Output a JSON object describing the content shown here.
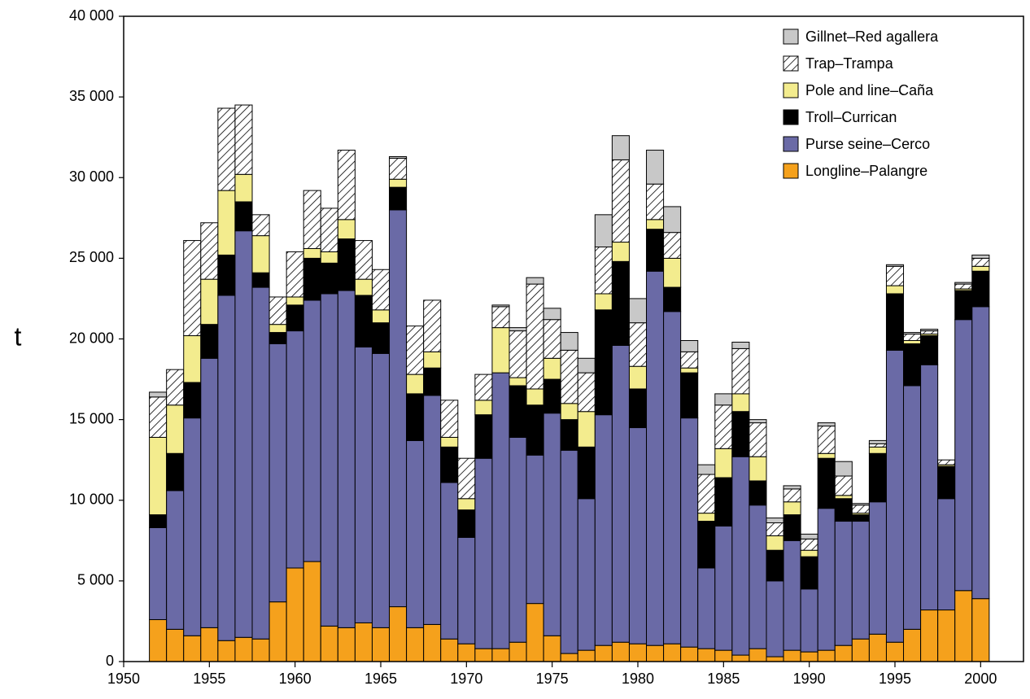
{
  "chart_data": {
    "type": "stacked-bar",
    "y_label": "t",
    "x": [
      1952,
      1953,
      1954,
      1955,
      1956,
      1957,
      1958,
      1959,
      1960,
      1961,
      1962,
      1963,
      1964,
      1965,
      1966,
      1967,
      1968,
      1969,
      1970,
      1971,
      1972,
      1973,
      1974,
      1975,
      1976,
      1977,
      1978,
      1979,
      1980,
      1981,
      1982,
      1983,
      1984,
      1985,
      1986,
      1987,
      1988,
      1989,
      1990,
      1991,
      1992,
      1993,
      1994,
      1995,
      1996,
      1997,
      1998,
      1999,
      2000
    ],
    "xlim": [
      1950,
      2002.5
    ],
    "xticks": [
      1950,
      1955,
      1960,
      1965,
      1970,
      1975,
      1980,
      1985,
      1990,
      1995,
      2000
    ],
    "ylim": [
      0,
      40000
    ],
    "yticks": [
      0,
      {
        "value": 5000,
        "label": "5 000"
      },
      {
        "value": 10000,
        "label": "10 000"
      },
      {
        "value": 15000,
        "label": "15 000"
      },
      {
        "value": 20000,
        "label": "20 000"
      },
      {
        "value": 25000,
        "label": "25 000"
      },
      {
        "value": 30000,
        "label": "30 000"
      },
      {
        "value": 35000,
        "label": "35 000"
      },
      {
        "value": 40000,
        "label": "40 000"
      }
    ],
    "grid": false,
    "legend": "top-right",
    "series": [
      {
        "name": "Longline–Palangre",
        "color": "#f5a11c",
        "values": [
          2600,
          2000,
          1600,
          2100,
          1300,
          1500,
          1400,
          3700,
          5800,
          6200,
          2200,
          2100,
          2400,
          2100,
          3400,
          2100,
          2300,
          1400,
          1100,
          800,
          800,
          1200,
          3600,
          1600,
          500,
          700,
          1000,
          1200,
          1100,
          1000,
          1100,
          900,
          800,
          700,
          400,
          800,
          300,
          700,
          600,
          700,
          1000,
          1400,
          1700,
          1200,
          2000,
          3200,
          3200,
          4400,
          3900
        ]
      },
      {
        "name": "Purse seine–Cerco",
        "color": "#6a6aa6",
        "values": [
          5700,
          8600,
          13500,
          16700,
          21400,
          25200,
          21800,
          16000,
          14700,
          16200,
          20600,
          20900,
          17100,
          17000,
          24600,
          11600,
          14200,
          9700,
          6600,
          11800,
          17100,
          12700,
          9200,
          13800,
          12600,
          9400,
          14300,
          18400,
          13400,
          23200,
          20600,
          14200,
          5000,
          7700,
          12300,
          8900,
          4700,
          6800,
          3900,
          8800,
          7700,
          7300,
          8200,
          18100,
          15100,
          15200,
          6900,
          16800,
          18100
        ]
      },
      {
        "name": "Troll–Currican",
        "color": "#000000",
        "values": [
          800,
          2300,
          2200,
          2100,
          2500,
          1800,
          900,
          700,
          1600,
          2600,
          1900,
          3200,
          3200,
          1900,
          1400,
          2900,
          1700,
          2200,
          1700,
          2700,
          0,
          3200,
          3100,
          2100,
          1900,
          3200,
          6500,
          5200,
          2400,
          2600,
          1500,
          2800,
          2900,
          3000,
          2800,
          1500,
          1900,
          1600,
          2000,
          3100,
          1400,
          400,
          3000,
          3500,
          2600,
          1800,
          2000,
          1800,
          2200
        ]
      },
      {
        "name": "Pole and line–Caña",
        "color": "#f3ec8e",
        "values": [
          4800,
          3000,
          2900,
          2800,
          4000,
          1700,
          2300,
          500,
          500,
          600,
          700,
          1200,
          1000,
          800,
          500,
          1200,
          1000,
          600,
          700,
          900,
          2800,
          500,
          1000,
          1300,
          1000,
          2200,
          1000,
          1200,
          1400,
          600,
          1800,
          300,
          500,
          1800,
          1100,
          1500,
          900,
          800,
          400,
          300,
          200,
          100,
          400,
          500,
          200,
          100,
          100,
          100,
          300
        ]
      },
      {
        "name": "Trap–Trampa",
        "pattern": "hatch",
        "values": [
          2500,
          2200,
          5900,
          3500,
          5100,
          4300,
          1300,
          1700,
          2800,
          3600,
          2700,
          4300,
          2400,
          2500,
          1300,
          3000,
          3200,
          2300,
          2500,
          1600,
          1300,
          2900,
          6500,
          2400,
          3300,
          2400,
          2900,
          5100,
          2700,
          2200,
          1600,
          1000,
          2400,
          2700,
          2800,
          2100,
          800,
          800,
          700,
          1700,
          1200,
          500,
          200,
          1200,
          400,
          200,
          300,
          300,
          500
        ]
      },
      {
        "name": "Gillnet–Red agallera",
        "color": "#c8c8c8",
        "values": [
          300,
          0,
          0,
          0,
          0,
          0,
          0,
          0,
          0,
          0,
          0,
          0,
          0,
          0,
          100,
          0,
          0,
          0,
          0,
          0,
          100,
          200,
          400,
          700,
          1100,
          900,
          2000,
          1500,
          1500,
          2100,
          1600,
          700,
          600,
          700,
          400,
          200,
          300,
          200,
          300,
          200,
          900,
          100,
          200,
          100,
          100,
          100,
          0,
          100,
          200
        ]
      }
    ]
  }
}
